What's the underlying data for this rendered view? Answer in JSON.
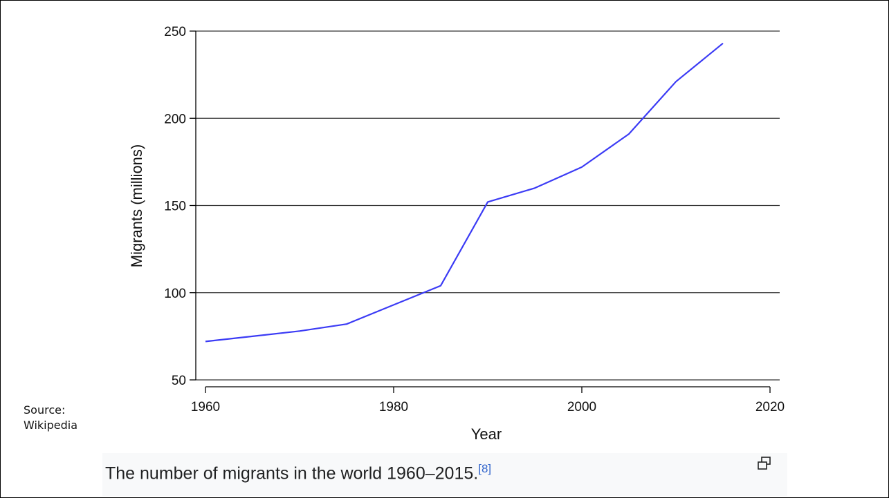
{
  "source_note": {
    "line1": "Source:",
    "line2": "Wikipedia"
  },
  "caption": {
    "text": "The number of migrants in the world 1960–2015.",
    "citation": "[8]"
  },
  "icons": {
    "enlarge": "enlarge-icon"
  },
  "colors": {
    "series": "#3b3bf5",
    "grid": "#333333",
    "axis": "#000000"
  },
  "chart_data": {
    "type": "line",
    "title": "",
    "xlabel": "Year",
    "ylabel": "Migrants (millions)",
    "xlim": [
      1960,
      2020
    ],
    "ylim": [
      50,
      250
    ],
    "x_ticks": [
      1960,
      1980,
      2000,
      2020
    ],
    "y_ticks": [
      50,
      100,
      150,
      200,
      250
    ],
    "grid": "horizontal",
    "series": [
      {
        "x": [
          1960,
          1965,
          1970,
          1975,
          1980,
          1985,
          1990,
          1995,
          2000,
          2005,
          2010,
          2015
        ],
        "values": [
          72,
          75,
          78,
          82,
          93,
          104,
          152,
          160,
          172,
          191,
          221,
          243
        ]
      }
    ]
  }
}
